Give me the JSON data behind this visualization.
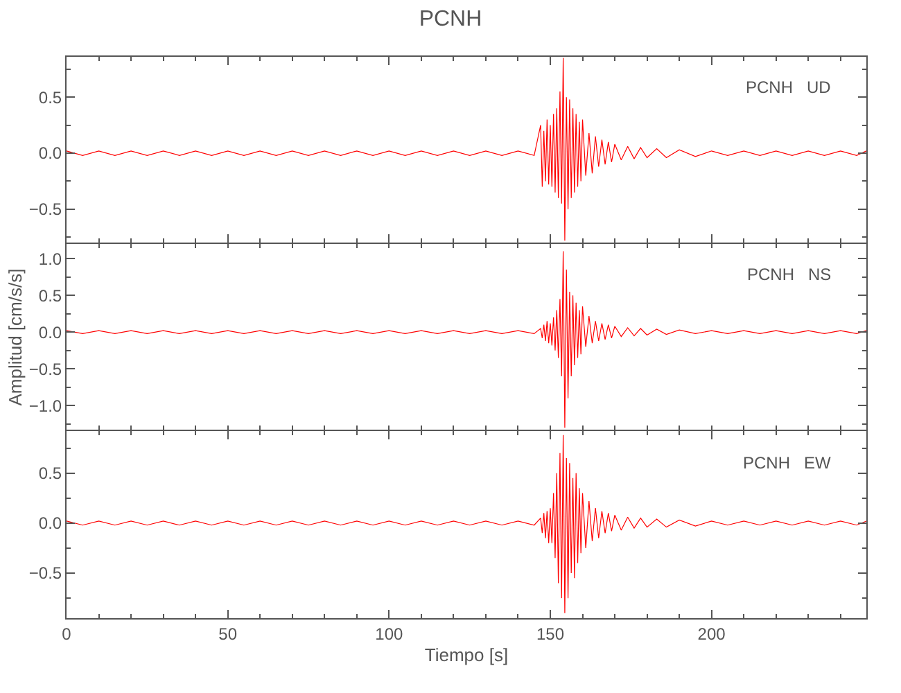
{
  "chart_data": [
    {
      "type": "line",
      "title": "PCNH",
      "annotations": [
        "PCNH   UD"
      ],
      "tick_labels": "y",
      "line_style": "solid",
      "marker": "none",
      "xlim": [
        0,
        248
      ],
      "xticks": [
        0,
        50,
        100,
        150,
        200
      ],
      "ylim": [
        -0.8,
        0.86
      ],
      "yticks": [
        {
          "value": -0.5,
          "label": "−0.5"
        },
        {
          "value": 0,
          "label": "0.0"
        },
        {
          "value": 0.5,
          "label": "0.5"
        }
      ],
      "x": [
        0,
        5,
        10,
        15,
        20,
        25,
        30,
        35,
        40,
        45,
        50,
        55,
        60,
        65,
        70,
        75,
        80,
        85,
        90,
        95,
        100,
        105,
        110,
        115,
        120,
        125,
        130,
        135,
        140,
        145,
        147,
        147.5,
        148,
        148.5,
        149,
        149.5,
        150,
        150.5,
        151,
        151.5,
        152,
        152.5,
        153,
        153.5,
        154,
        154.5,
        155,
        155.5,
        156,
        156.5,
        157,
        157.5,
        158,
        158.5,
        159,
        159.5,
        160,
        161,
        162,
        163,
        164,
        165,
        166,
        167,
        168,
        169,
        170,
        172,
        174,
        176,
        178,
        180,
        183,
        186,
        190,
        195,
        200,
        205,
        210,
        215,
        220,
        225,
        230,
        235,
        240,
        245,
        248
      ],
      "series": [
        {
          "color": "#ff0000",
          "values": [
            0.02,
            -0.02,
            0.02,
            -0.02,
            0.02,
            -0.02,
            0.02,
            -0.02,
            0.02,
            -0.02,
            0.02,
            -0.02,
            0.02,
            -0.02,
            0.02,
            -0.02,
            0.02,
            -0.02,
            0.02,
            -0.02,
            0.02,
            -0.02,
            0.02,
            -0.02,
            0.02,
            -0.02,
            0.02,
            -0.02,
            0.02,
            -0.02,
            0.25,
            -0.3,
            0.2,
            -0.25,
            0.3,
            -0.28,
            0.25,
            -0.3,
            0.35,
            -0.35,
            0.4,
            -0.4,
            0.55,
            -0.45,
            0.85,
            -0.78,
            0.5,
            -0.5,
            0.48,
            -0.4,
            0.4,
            -0.35,
            0.35,
            -0.3,
            0.28,
            -0.25,
            0.3,
            -0.2,
            0.18,
            -0.18,
            0.15,
            -0.12,
            0.12,
            -0.1,
            0.1,
            -0.08,
            0.08,
            -0.06,
            0.06,
            -0.05,
            0.05,
            -0.04,
            0.04,
            -0.04,
            0.03,
            -0.03,
            0.02,
            -0.02,
            0.02,
            -0.02,
            0.02,
            -0.02,
            0.02,
            -0.02,
            0.02,
            -0.02,
            0.02
          ]
        }
      ]
    },
    {
      "type": "line",
      "ylabel": "Amplitud [cm/s/s]",
      "annotations": [
        "PCNH   NS"
      ],
      "tick_labels": "y",
      "line_style": "solid",
      "marker": "none",
      "xlim": [
        0,
        248
      ],
      "ylim": [
        -1.33,
        1.2
      ],
      "yticks": [
        {
          "value": -1,
          "label": "−1.0"
        },
        {
          "value": -0.5,
          "label": "−0.5"
        },
        {
          "value": 0,
          "label": "0.0"
        },
        {
          "value": 0.5,
          "label": "0.5"
        },
        {
          "value": 1,
          "label": "1.0"
        }
      ],
      "x": [
        0,
        5,
        10,
        15,
        20,
        25,
        30,
        35,
        40,
        45,
        50,
        55,
        60,
        65,
        70,
        75,
        80,
        85,
        90,
        95,
        100,
        105,
        110,
        115,
        120,
        125,
        130,
        135,
        140,
        145,
        147,
        147.5,
        148,
        148.5,
        149,
        149.5,
        150,
        150.5,
        151,
        151.5,
        152,
        152.5,
        153,
        153.5,
        154,
        154.5,
        155,
        155.5,
        156,
        156.5,
        157,
        157.5,
        158,
        158.5,
        159,
        159.5,
        160,
        161,
        162,
        163,
        164,
        165,
        166,
        167,
        168,
        169,
        170,
        172,
        174,
        176,
        178,
        180,
        183,
        186,
        190,
        195,
        200,
        205,
        210,
        215,
        220,
        225,
        230,
        235,
        240,
        245,
        248
      ],
      "series": [
        {
          "color": "#ff0000",
          "values": [
            0.02,
            -0.02,
            0.02,
            -0.02,
            0.02,
            -0.02,
            0.02,
            -0.02,
            0.02,
            -0.02,
            0.02,
            -0.02,
            0.02,
            -0.02,
            0.02,
            -0.02,
            0.02,
            -0.02,
            0.02,
            -0.02,
            0.02,
            -0.02,
            0.02,
            -0.02,
            0.02,
            -0.02,
            0.02,
            -0.02,
            0.02,
            -0.02,
            0.05,
            -0.08,
            0.1,
            -0.12,
            0.15,
            -0.15,
            0.12,
            -0.18,
            0.2,
            -0.25,
            0.3,
            -0.35,
            0.45,
            -0.6,
            1.1,
            -1.3,
            0.85,
            -0.9,
            0.55,
            -0.6,
            0.5,
            -0.45,
            0.4,
            -0.35,
            0.3,
            -0.3,
            0.35,
            -0.2,
            0.22,
            -0.15,
            0.15,
            -0.12,
            0.12,
            -0.1,
            0.1,
            -0.08,
            0.08,
            -0.06,
            0.06,
            -0.05,
            0.05,
            -0.04,
            0.04,
            -0.03,
            0.03,
            -0.02,
            0.02,
            -0.02,
            0.02,
            -0.02,
            0.02,
            -0.02,
            0.02,
            -0.02,
            0.02,
            -0.02,
            0.02
          ]
        }
      ]
    },
    {
      "type": "line",
      "xlabel": "Tiempo [s]",
      "annotations": [
        "PCNH   EW"
      ],
      "line_style": "solid",
      "marker": "none",
      "xlim": [
        0,
        248
      ],
      "xticks": [
        0,
        50,
        100,
        150,
        200
      ],
      "ylim": [
        -0.95,
        0.92
      ],
      "yticks": [
        {
          "value": -0.5,
          "label": "−0.5"
        },
        {
          "value": 0,
          "label": "0.0"
        },
        {
          "value": 0.5,
          "label": "0.5"
        }
      ],
      "x": [
        0,
        5,
        10,
        15,
        20,
        25,
        30,
        35,
        40,
        45,
        50,
        55,
        60,
        65,
        70,
        75,
        80,
        85,
        90,
        95,
        100,
        105,
        110,
        115,
        120,
        125,
        130,
        135,
        140,
        145,
        147,
        147.5,
        148,
        148.5,
        149,
        149.5,
        150,
        150.5,
        151,
        151.5,
        152,
        152.5,
        153,
        153.5,
        154,
        154.5,
        155,
        155.5,
        156,
        156.5,
        157,
        157.5,
        158,
        158.5,
        159,
        159.5,
        160,
        161,
        162,
        163,
        164,
        165,
        166,
        167,
        168,
        169,
        170,
        172,
        174,
        176,
        178,
        180,
        183,
        186,
        190,
        195,
        200,
        205,
        210,
        215,
        220,
        225,
        230,
        235,
        240,
        245,
        248
      ],
      "series": [
        {
          "color": "#ff0000",
          "values": [
            0.02,
            -0.02,
            0.02,
            -0.02,
            0.02,
            -0.02,
            0.02,
            -0.02,
            0.02,
            -0.02,
            0.02,
            -0.02,
            0.02,
            -0.02,
            0.02,
            -0.02,
            0.02,
            -0.02,
            0.02,
            -0.02,
            0.02,
            -0.02,
            0.02,
            -0.02,
            0.02,
            -0.02,
            0.02,
            -0.02,
            0.02,
            -0.02,
            0.05,
            -0.1,
            0.1,
            -0.15,
            0.12,
            -0.2,
            0.15,
            -0.2,
            0.3,
            -0.35,
            0.5,
            -0.6,
            0.7,
            -0.75,
            0.88,
            -0.9,
            0.65,
            -0.75,
            0.6,
            -0.5,
            0.45,
            -0.55,
            0.5,
            -0.4,
            0.35,
            -0.3,
            0.3,
            -0.25,
            0.22,
            -0.18,
            0.15,
            -0.15,
            0.12,
            -0.1,
            0.1,
            -0.08,
            0.08,
            -0.07,
            0.06,
            -0.05,
            0.05,
            -0.04,
            0.04,
            -0.04,
            0.03,
            -0.03,
            0.02,
            -0.02,
            0.02,
            -0.02,
            0.02,
            -0.02,
            0.02,
            -0.02,
            0.02,
            -0.02,
            0.02
          ]
        }
      ]
    }
  ]
}
